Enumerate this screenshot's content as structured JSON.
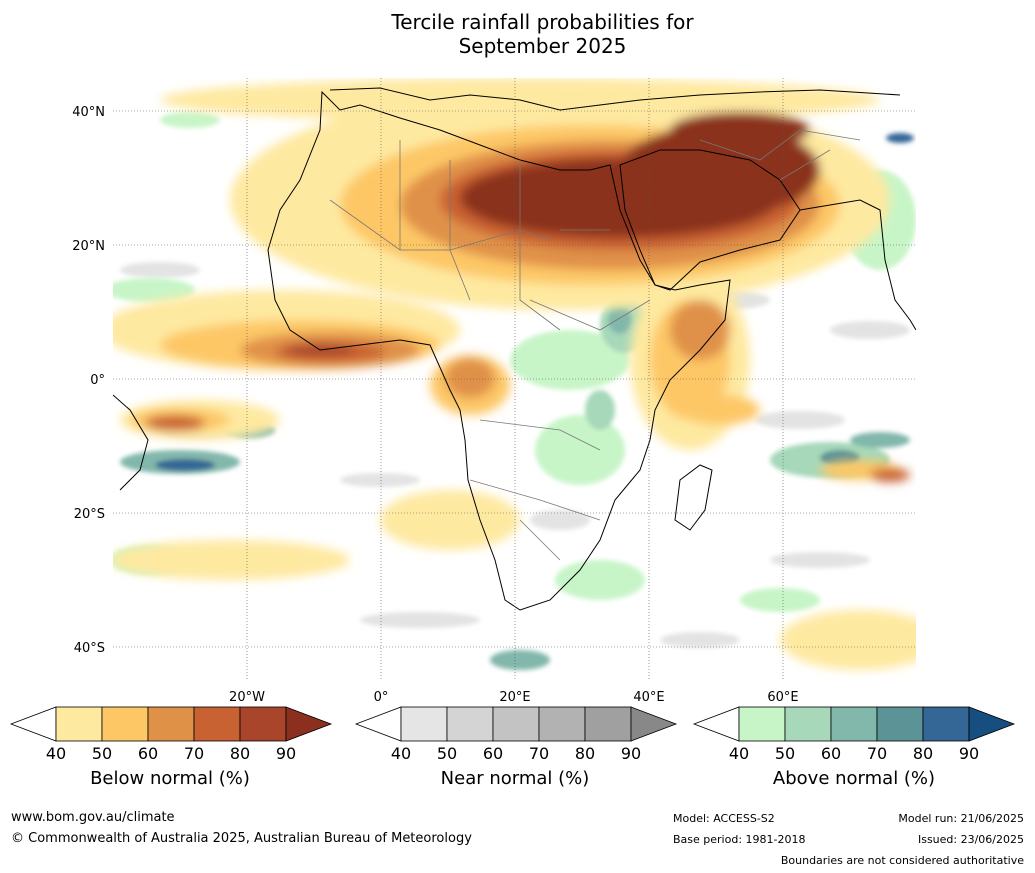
{
  "title_line1": "Tercile rainfall probabilities for",
  "title_line2": "September 2025",
  "lat_labels": [
    "40°N",
    "20°N",
    "0°",
    "20°S",
    "40°S"
  ],
  "lon_labels": [
    "20°W",
    "0°",
    "20°E",
    "40°E",
    "60°E"
  ],
  "colorbars": [
    {
      "title": "Below normal (%)",
      "ticks": [
        "40",
        "50",
        "60",
        "70",
        "80",
        "90"
      ],
      "colors": [
        "#ffffff",
        "#fee9a0",
        "#fdc766",
        "#e09148",
        "#c96233",
        "#a8452a",
        "#8b301f"
      ]
    },
    {
      "title": "Near normal (%)",
      "ticks": [
        "40",
        "50",
        "60",
        "70",
        "80",
        "90"
      ],
      "colors": [
        "#ffffff",
        "#e5e5e5",
        "#d4d4d4",
        "#c3c3c3",
        "#b2b2b2",
        "#a0a0a0",
        "#888888"
      ]
    },
    {
      "title": "Above normal (%)",
      "ticks": [
        "40",
        "50",
        "60",
        "70",
        "80",
        "90"
      ],
      "colors": [
        "#ffffff",
        "#c8f5c8",
        "#a6d8b9",
        "#82b7ab",
        "#5c9397",
        "#356796",
        "#174e80"
      ]
    }
  ],
  "footer": {
    "url": "www.bom.gov.au/climate",
    "copyright": "© Commonwealth of Australia 2025, Australian Bureau of Meteorology",
    "model": "Model: ACCESS-S2",
    "base_period": "Base period: 1981-2018",
    "model_run": "Model run: 21/06/2025",
    "issued": "Issued: 23/06/2025",
    "disclaimer": "Boundaries are not considered authoritative"
  }
}
